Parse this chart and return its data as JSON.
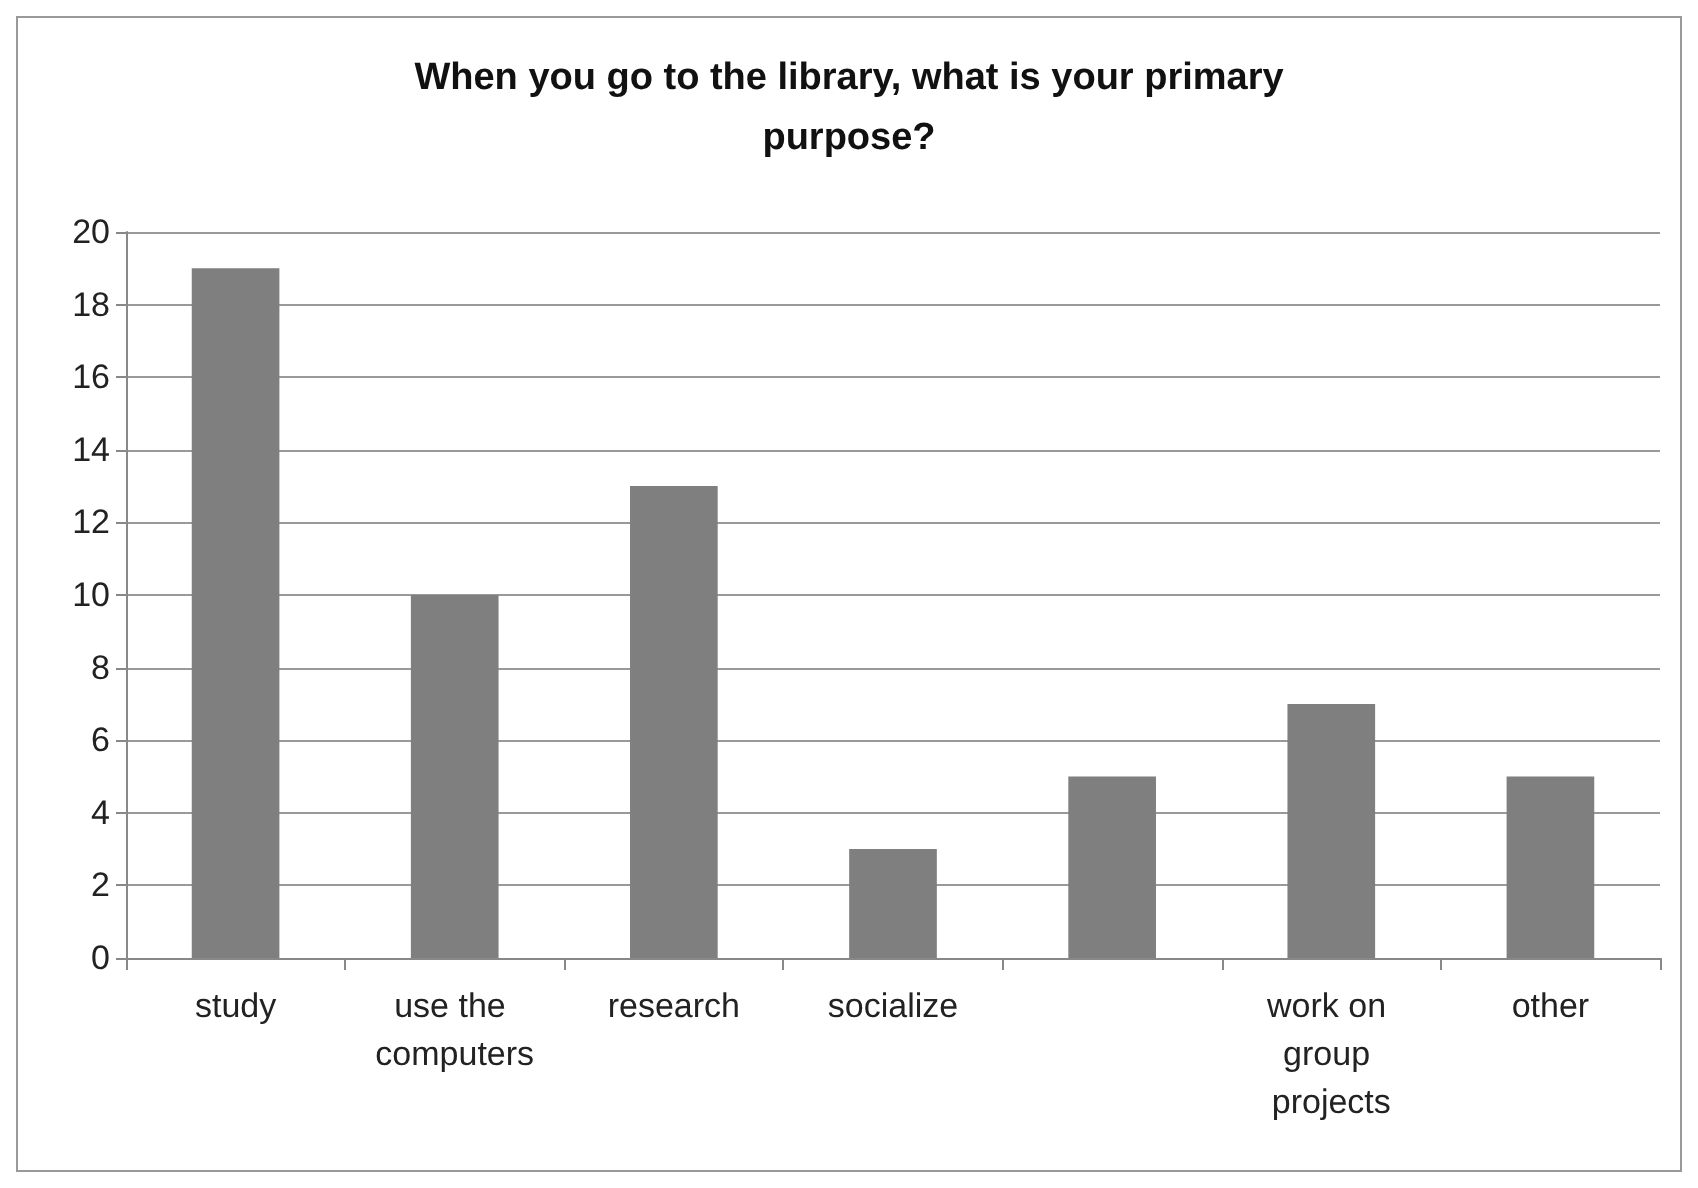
{
  "chart_data": {
    "type": "bar",
    "title": "When you go to the library, what is your primary\npurpose?",
    "categories": [
      "study",
      "use the computers",
      "research",
      "socialize",
      null,
      "work on group projects",
      "other"
    ],
    "values": [
      19,
      10,
      13,
      3,
      5,
      7,
      5
    ],
    "color": "#7f7f7f",
    "ylim": [
      0,
      20
    ],
    "yticks": [
      0,
      2,
      4,
      6,
      8,
      10,
      12,
      14,
      16,
      18,
      20
    ],
    "grid": "y"
  }
}
